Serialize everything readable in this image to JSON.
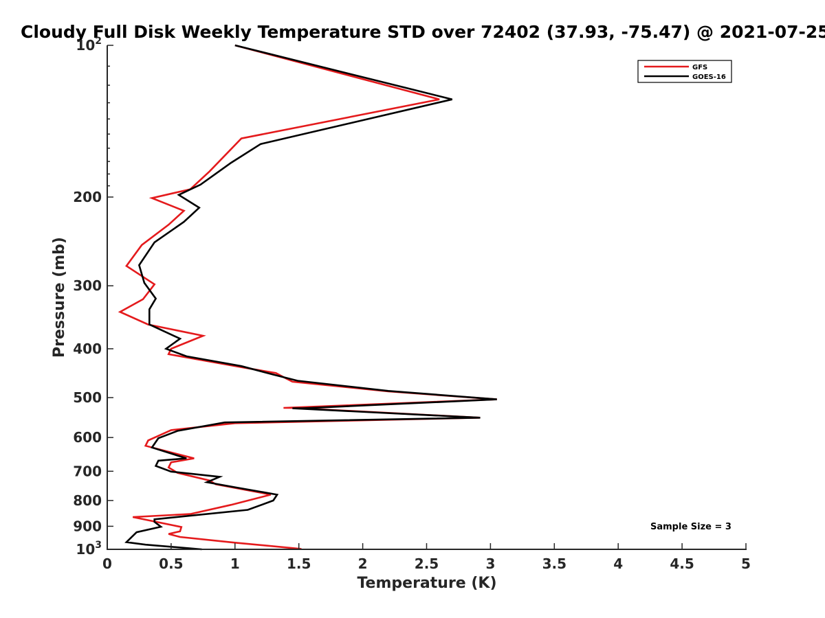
{
  "chart_data": {
    "type": "line",
    "title": "Cloudy Full Disk Weekly Temperature STD over 72402 (37.93, -75.47) @ 2021-07-25",
    "xlabel": "Temperature (K)",
    "ylabel": "Pressure (mb)",
    "xlim": [
      0,
      5
    ],
    "ylim": [
      100,
      1000
    ],
    "y_scale": "log",
    "y_reversed": true,
    "x_ticks": [
      "0",
      "0.5",
      "1",
      "1.5",
      "2",
      "2.5",
      "3",
      "3.5",
      "4",
      "4.5",
      "5"
    ],
    "y_ticks": [
      {
        "value": 100,
        "base": "10",
        "exp": "2"
      },
      {
        "value": 200,
        "label": "200"
      },
      {
        "value": 300,
        "label": "300"
      },
      {
        "value": 400,
        "label": "400"
      },
      {
        "value": 500,
        "label": "500"
      },
      {
        "value": 600,
        "label": "600"
      },
      {
        "value": 700,
        "label": "700"
      },
      {
        "value": 800,
        "label": "800"
      },
      {
        "value": 900,
        "label": "900"
      },
      {
        "value": 1000,
        "base": "10",
        "exp": "3"
      }
    ],
    "grid": false,
    "legend_position": "top-right",
    "annotation": "Sample Size = 3",
    "series": [
      {
        "name": "GFS",
        "color": "#e41a1c",
        "x": [
          1.0,
          2.6,
          1.05,
          0.8,
          0.65,
          0.35,
          0.6,
          0.48,
          0.27,
          0.15,
          0.37,
          0.28,
          0.1,
          0.32,
          0.75,
          0.5,
          0.48,
          1.05,
          1.32,
          1.4,
          1.45,
          2.2,
          3.05,
          1.38,
          1.45,
          2.92,
          1.0,
          0.5,
          0.32,
          0.3,
          0.68,
          0.5,
          0.48,
          0.55,
          0.8,
          0.85,
          1.2,
          1.28,
          0.97,
          0.65,
          0.2,
          0.58,
          0.57,
          0.48,
          0.57,
          1.0,
          1.52
        ],
        "y": [
          100,
          128,
          153,
          178,
          193,
          201,
          213,
          227,
          249,
          274,
          298,
          319,
          338,
          358,
          377,
          400,
          410,
          435,
          447,
          458,
          465,
          486,
          504,
          524,
          524,
          548,
          562,
          580,
          608,
          623,
          660,
          672,
          688,
          705,
          730,
          743,
          772,
          779,
          816,
          851,
          863,
          903,
          921,
          932,
          945,
          970,
          998
        ]
      },
      {
        "name": "GOES-16",
        "color": "#000000",
        "x": [
          1.0,
          2.7,
          1.2,
          0.97,
          0.73,
          0.56,
          0.72,
          0.6,
          0.37,
          0.25,
          0.29,
          0.38,
          0.33,
          0.33,
          0.57,
          0.46,
          0.62,
          1.05,
          1.3,
          1.49,
          2.2,
          3.05,
          1.53,
          1.45,
          2.92,
          0.92,
          0.55,
          0.4,
          0.35,
          0.62,
          0.4,
          0.38,
          0.5,
          0.88,
          0.78,
          1.0,
          1.33,
          1.3,
          1.1,
          0.37,
          0.37,
          0.42,
          0.23,
          0.15,
          0.3,
          0.74
        ],
        "y": [
          100,
          128,
          157,
          171,
          189,
          198,
          210,
          224,
          246,
          273,
          296,
          318,
          334,
          358,
          382,
          400,
          414,
          433,
          450,
          463,
          485,
          504,
          525,
          525,
          548,
          560,
          582,
          602,
          628,
          660,
          667,
          683,
          701,
          718,
          736,
          753,
          779,
          800,
          835,
          872,
          882,
          902,
          925,
          968,
          979,
          1000
        ]
      }
    ]
  }
}
